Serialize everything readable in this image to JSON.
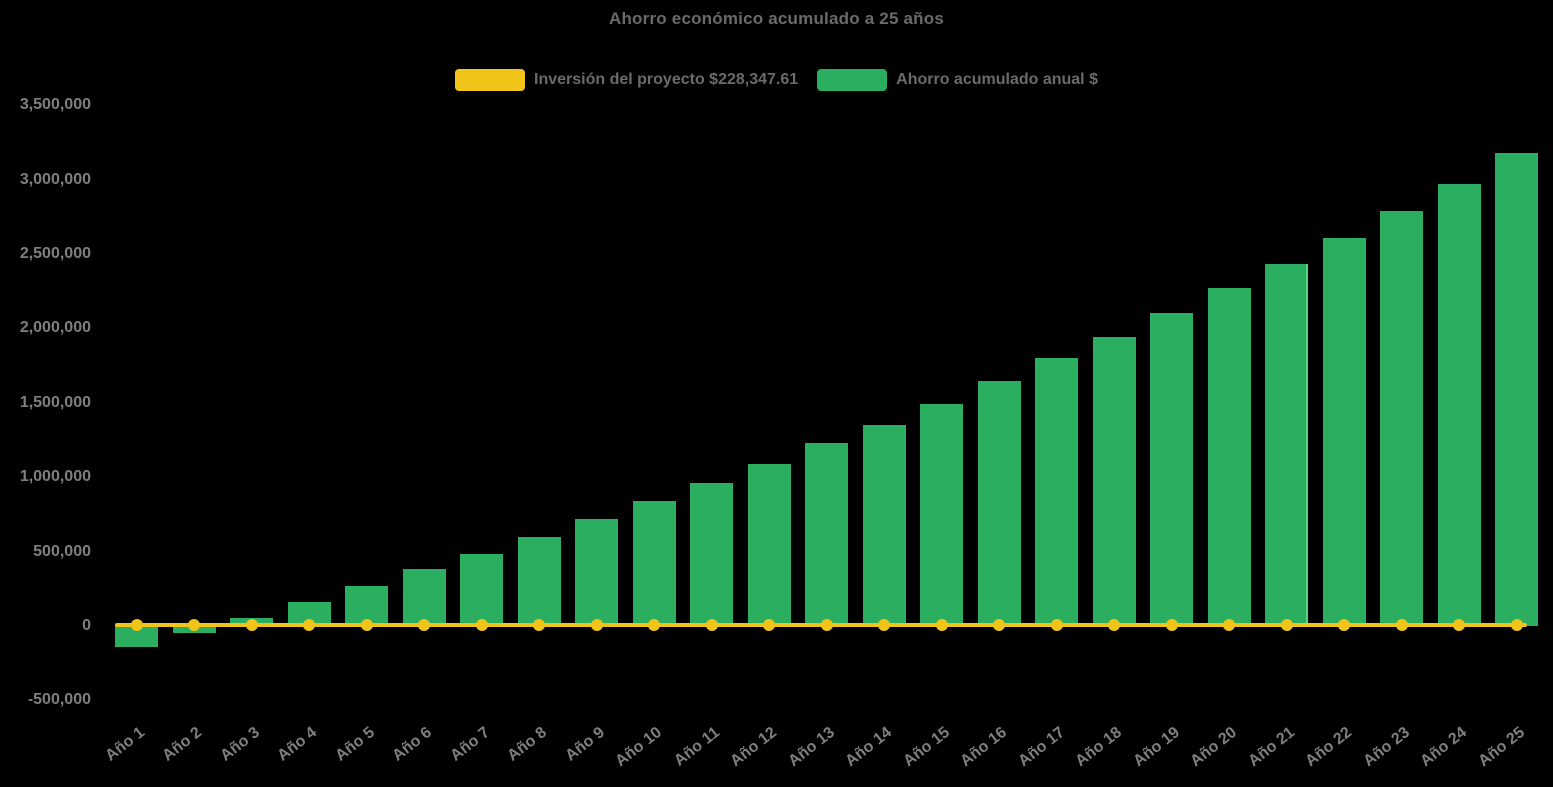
{
  "title": "Ahorro económico acumulado a 25 años",
  "legend": {
    "items": [
      {
        "id": "inversion",
        "label": "Inversión del proyecto $228,347.61",
        "color": "#F0C419",
        "series_type": "line"
      },
      {
        "id": "ahorro",
        "label": "Ahorro acumulado anual $",
        "color": "#2BAE60",
        "series_type": "bar"
      }
    ]
  },
  "colors": {
    "background": "#000000",
    "bar": "#2BAE60",
    "bar_highlight_edge": "#4FD67F",
    "line": "#F0C419",
    "title_text": "#6A6A6A",
    "tick_text": "#7F7F7F"
  },
  "chart_data": {
    "type": "bar",
    "title": "Ahorro económico acumulado a 25 años",
    "categories": [
      "Año 1",
      "Año 2",
      "Año 3",
      "Año 4",
      "Año 5",
      "Año 6",
      "Año 7",
      "Año 8",
      "Año 9",
      "Año 10",
      "Año 11",
      "Año 12",
      "Año 13",
      "Año 14",
      "Año 15",
      "Año 16",
      "Año 17",
      "Año 18",
      "Año 19",
      "Año 20",
      "Año 21",
      "Año 22",
      "Año 23",
      "Año 24",
      "Año 25"
    ],
    "series": [
      {
        "name": "Ahorro acumulado anual $",
        "type": "bar",
        "color": "#2BAE60",
        "values": [
          -141000,
          -47000,
          54000,
          161000,
          269000,
          383000,
          484000,
          598000,
          719000,
          840000,
          961000,
          1089000,
          1227000,
          1354000,
          1495000,
          1646000,
          1801000,
          1945000,
          2103000,
          2271000,
          2436000,
          2607000,
          2789000,
          2970000,
          3182000
        ]
      },
      {
        "name": "Inversión del proyecto $228,347.61",
        "type": "line",
        "color": "#F0C419",
        "values": [
          0,
          0,
          0,
          0,
          0,
          0,
          0,
          0,
          0,
          0,
          0,
          0,
          0,
          0,
          0,
          0,
          0,
          0,
          0,
          0,
          0,
          0,
          0,
          0,
          0
        ]
      }
    ],
    "xlabel": "",
    "ylabel": "",
    "ylim": [
      -500000,
      3500000
    ],
    "ytick_step": 500000,
    "grid": false,
    "legend_position": "top",
    "x_tick_rotation": -38,
    "highlighted_category": "Año 21"
  }
}
